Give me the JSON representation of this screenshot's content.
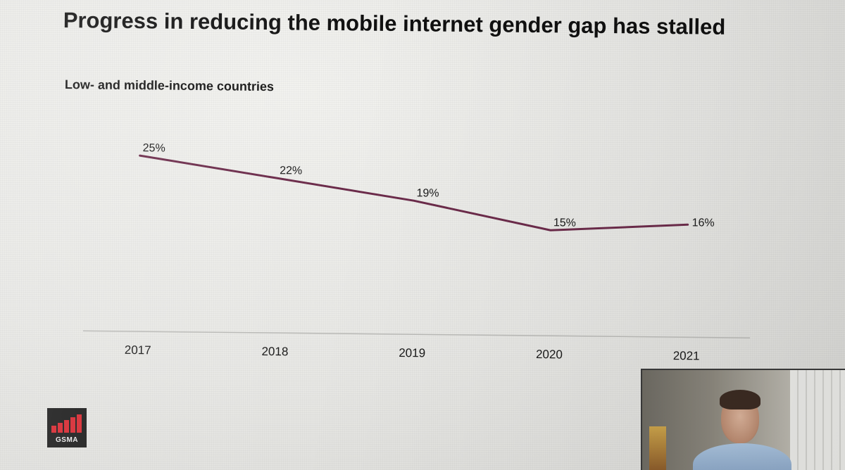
{
  "slide": {
    "title": "Progress in reducing the mobile internet gender gap has stalled",
    "subtitle": "Low- and middle-income countries"
  },
  "logo": {
    "text": "GSMA",
    "bar_color": "#d6272f",
    "background_color": "#1b1b1b"
  },
  "chart_data": {
    "type": "line",
    "title": "Progress in reducing the mobile internet gender gap has stalled",
    "subtitle": "Low- and middle-income countries",
    "categories": [
      "2017",
      "2018",
      "2019",
      "2020",
      "2021"
    ],
    "values": [
      25,
      22,
      19,
      15,
      16
    ],
    "data_labels": [
      "25%",
      "22%",
      "19%",
      "15%",
      "16%"
    ],
    "unit": "%",
    "xlabel": "",
    "ylabel": "",
    "ylim": [
      0,
      30
    ],
    "grid": false,
    "legend": "none",
    "line_color": "#6b2b4a"
  },
  "video_tile": {
    "icon": "webcam-participant"
  }
}
